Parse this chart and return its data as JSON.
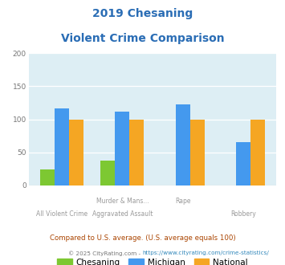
{
  "title_line1": "2019 Chesaning",
  "title_line2": "Violent Crime Comparison",
  "title_color": "#2a6db5",
  "chesaning_vals": [
    24,
    37,
    0,
    0
  ],
  "michigan_vals": [
    116,
    112,
    122,
    65
  ],
  "national_vals": [
    100,
    100,
    100,
    100
  ],
  "chesaning_color": "#7dc832",
  "michigan_color": "#4499ee",
  "national_color": "#f5a623",
  "ylim": [
    0,
    200
  ],
  "yticks": [
    0,
    50,
    100,
    150,
    200
  ],
  "plot_bg": "#ddeef4",
  "grid_color": "#c0d8e0",
  "line1_labels": [
    "",
    "Murder & Mans...",
    "Rape",
    ""
  ],
  "line2_labels": [
    "All Violent Crime",
    "Aggravated Assault",
    "",
    "Robbery"
  ],
  "legend_labels": [
    "Chesaning",
    "Michigan",
    "National"
  ],
  "footer_note": "Compared to U.S. average. (U.S. average equals 100)",
  "footer_color": "#aa4400",
  "copyright_prefix": "© 2025 CityRating.com - ",
  "copyright_link": "https://www.cityrating.com/crime-statistics/",
  "copyright_color": "#777777",
  "copyright_link_color": "#3388bb",
  "bar_width": 0.24
}
